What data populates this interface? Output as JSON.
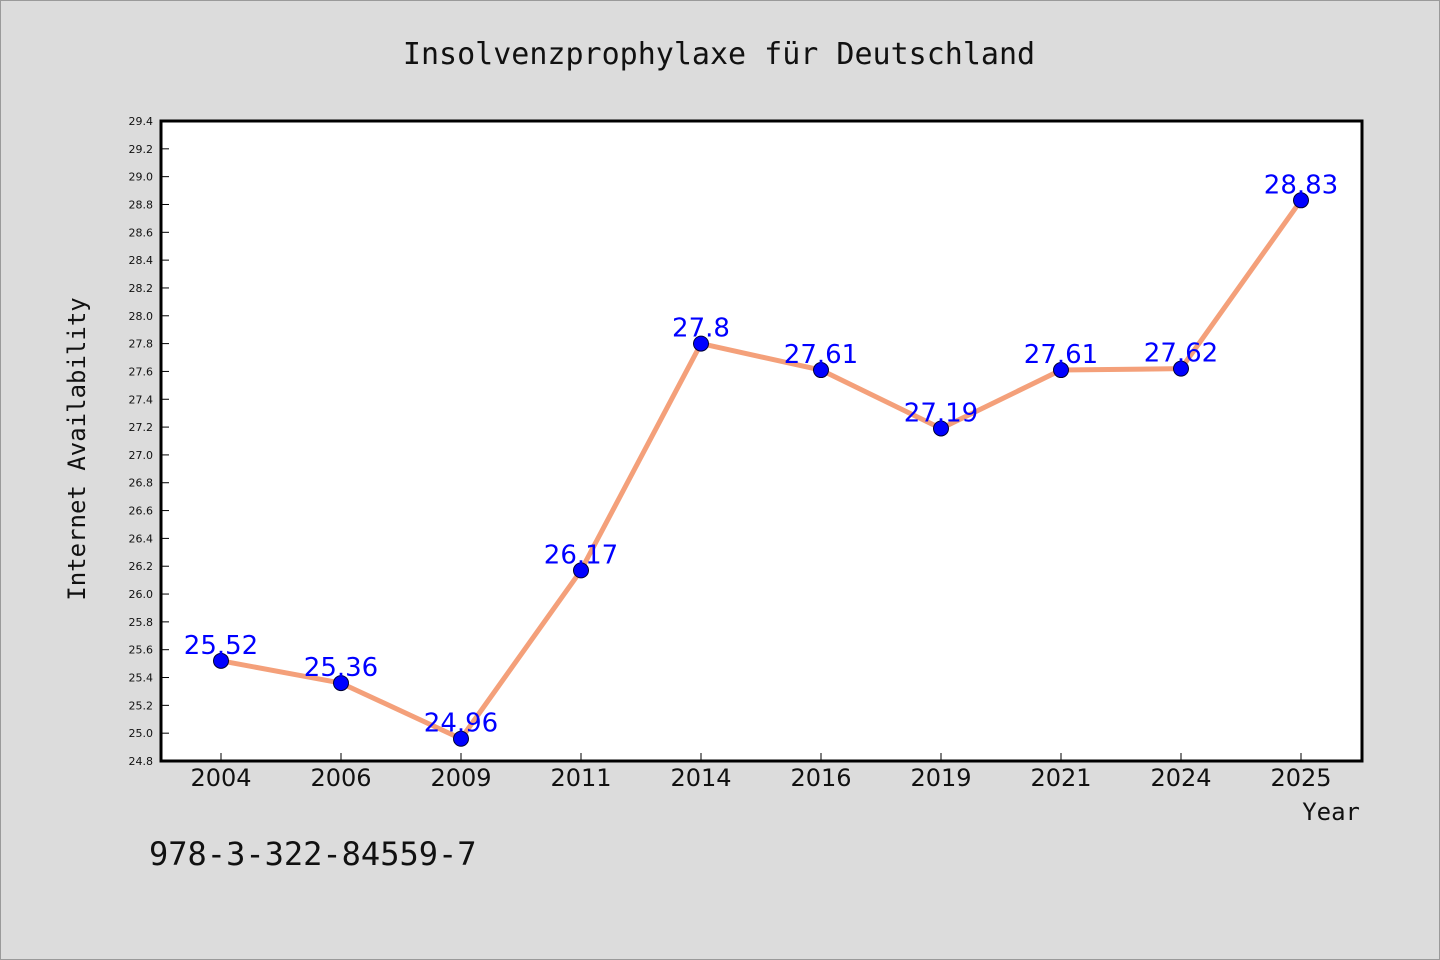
{
  "chart_data": {
    "type": "line",
    "title": "Insolvenzprophylaxe für Deutschland",
    "xlabel": "Year",
    "ylabel": "Internet Availability",
    "categories": [
      "2004",
      "2006",
      "2009",
      "2011",
      "2014",
      "2016",
      "2019",
      "2021",
      "2024",
      "2025"
    ],
    "values": [
      25.52,
      25.36,
      24.96,
      26.17,
      27.8,
      27.61,
      27.19,
      27.61,
      27.62,
      28.83
    ],
    "data_labels": [
      "25.52",
      "25.36",
      "24.96",
      "26.17",
      "27.8",
      "27.61",
      "27.19",
      "27.61",
      "27.62",
      "28.83"
    ],
    "ylim": [
      24.8,
      29.4
    ],
    "yticks": [
      "24.8",
      "25.0",
      "25.2",
      "25.4",
      "25.6",
      "25.8",
      "26.0",
      "26.2",
      "26.4",
      "26.6",
      "26.8",
      "27.0",
      "27.2",
      "27.4",
      "27.6",
      "27.8",
      "28.0",
      "28.2",
      "28.4",
      "28.6",
      "28.8",
      "29.0",
      "29.2",
      "29.4"
    ],
    "grid": false,
    "line_color": "#f4a07a",
    "marker_color": "#0000ff",
    "label_color": "#0000ff"
  },
  "footer": {
    "isbn": "978-3-322-84559-7"
  }
}
